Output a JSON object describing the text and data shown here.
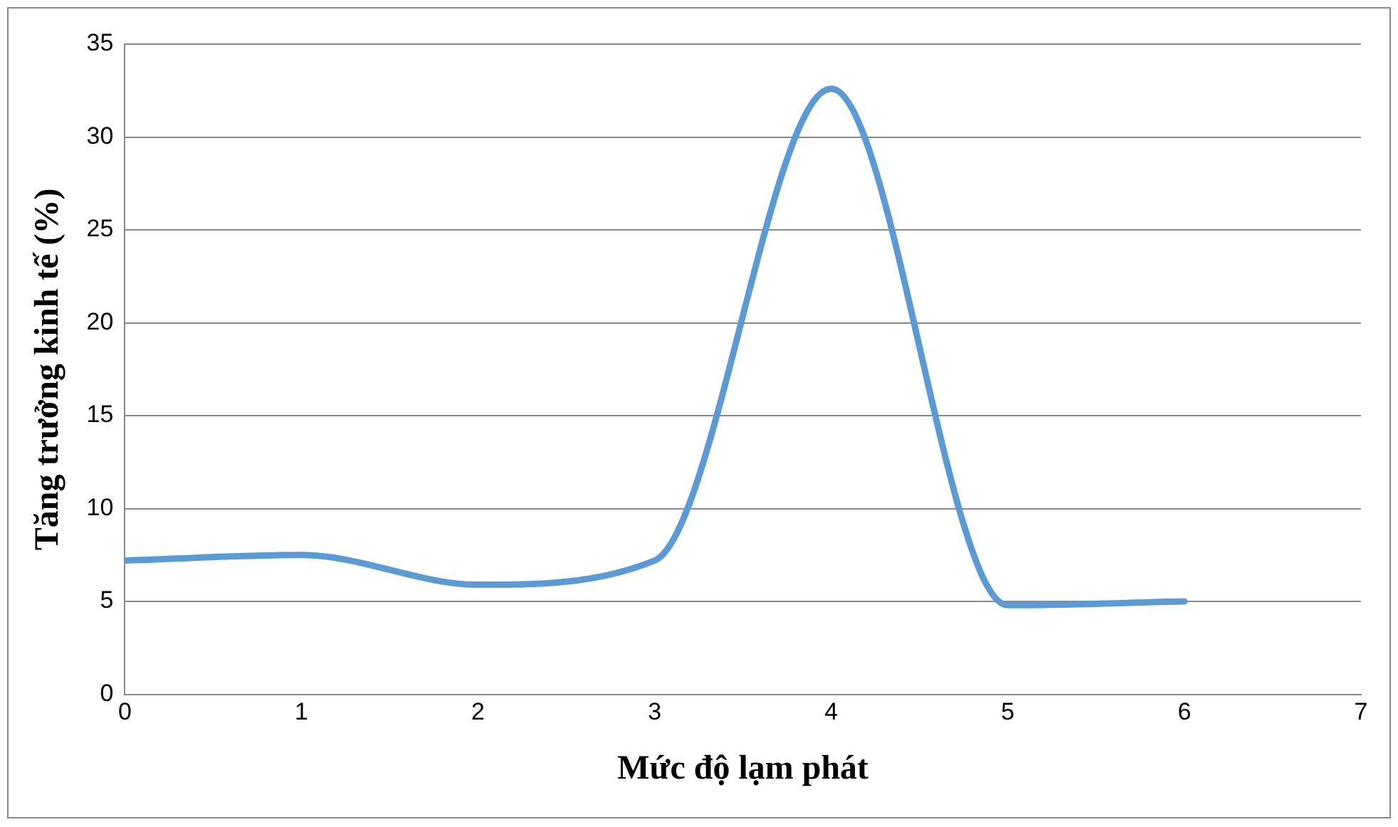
{
  "chart_data": {
    "type": "line",
    "xlabel": "Mức độ lạm phát",
    "ylabel": "Tăng trưởng kinh tế (%)",
    "x": [
      0,
      1,
      2,
      3,
      4,
      5,
      6
    ],
    "series": [
      {
        "color": "#5b9bd5",
        "values": [
          7.2,
          7.5,
          5.9,
          7.2,
          32.6,
          4.8,
          5.0
        ]
      }
    ],
    "xlim": [
      0,
      7
    ],
    "xticks": [
      0,
      1,
      2,
      3,
      4,
      5,
      6,
      7
    ],
    "ylim": [
      0,
      35
    ],
    "yticks": [
      0,
      5,
      10,
      15,
      20,
      25,
      30,
      35
    ],
    "grid": "y",
    "legend": false,
    "marker": "none",
    "line_style": "solid"
  }
}
